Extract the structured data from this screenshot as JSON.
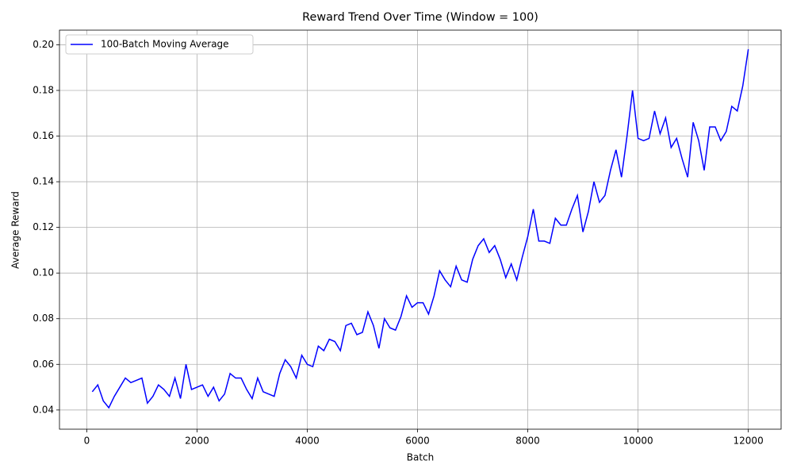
{
  "chart_data": {
    "type": "line",
    "title": "Reward Trend Over Time (Window = 100)",
    "xlabel": "Batch",
    "ylabel": "Average Reward",
    "x": [
      100,
      200,
      300,
      400,
      500,
      600,
      700,
      800,
      900,
      1000,
      1100,
      1200,
      1300,
      1400,
      1500,
      1600,
      1700,
      1800,
      1900,
      2000,
      2100,
      2200,
      2300,
      2400,
      2500,
      2600,
      2700,
      2800,
      2900,
      3000,
      3100,
      3200,
      3300,
      3400,
      3500,
      3600,
      3700,
      3800,
      3900,
      4000,
      4100,
      4200,
      4300,
      4400,
      4500,
      4600,
      4700,
      4800,
      4900,
      5000,
      5100,
      5200,
      5300,
      5400,
      5500,
      5600,
      5700,
      5800,
      5900,
      6000,
      6100,
      6200,
      6300,
      6400,
      6500,
      6600,
      6700,
      6800,
      6900,
      7000,
      7100,
      7200,
      7300,
      7400,
      7500,
      7600,
      7700,
      7800,
      7900,
      8000,
      8100,
      8200,
      8300,
      8400,
      8500,
      8600,
      8700,
      8800,
      8900,
      9000,
      9100,
      9200,
      9300,
      9400,
      9500,
      9600,
      9700,
      9800,
      9900,
      10000,
      10100,
      10200,
      10300,
      10400,
      10500,
      10600,
      10700,
      10800,
      10900,
      11000,
      11100,
      11200,
      11300,
      11400,
      11500,
      11600,
      11700,
      11800,
      11900,
      12000
    ],
    "series": [
      {
        "name": "100-Batch Moving Average",
        "color": "#0000ff",
        "values": [
          0.048,
          0.051,
          0.044,
          0.041,
          0.046,
          0.05,
          0.054,
          0.052,
          0.053,
          0.054,
          0.043,
          0.046,
          0.051,
          0.049,
          0.046,
          0.054,
          0.045,
          0.06,
          0.049,
          0.05,
          0.051,
          0.046,
          0.05,
          0.044,
          0.047,
          0.056,
          0.054,
          0.054,
          0.049,
          0.045,
          0.054,
          0.048,
          0.047,
          0.046,
          0.056,
          0.062,
          0.059,
          0.054,
          0.064,
          0.06,
          0.059,
          0.068,
          0.066,
          0.071,
          0.07,
          0.066,
          0.077,
          0.078,
          0.073,
          0.074,
          0.083,
          0.077,
          0.067,
          0.08,
          0.076,
          0.075,
          0.081,
          0.09,
          0.085,
          0.087,
          0.087,
          0.082,
          0.09,
          0.101,
          0.097,
          0.094,
          0.103,
          0.097,
          0.096,
          0.106,
          0.112,
          0.115,
          0.109,
          0.112,
          0.106,
          0.098,
          0.104,
          0.097,
          0.107,
          0.116,
          0.128,
          0.114,
          0.114,
          0.113,
          0.124,
          0.121,
          0.121,
          0.128,
          0.134,
          0.118,
          0.127,
          0.14,
          0.131,
          0.134,
          0.145,
          0.154,
          0.142,
          0.16,
          0.18,
          0.159,
          0.158,
          0.159,
          0.171,
          0.161,
          0.168,
          0.155,
          0.159,
          0.15,
          0.142,
          0.166,
          0.158,
          0.145,
          0.164,
          0.164,
          0.158,
          0.162,
          0.173,
          0.171,
          0.182,
          0.198
        ]
      }
    ],
    "xlim": [
      -495,
      12595
    ],
    "ylim": [
      0.0316,
      0.2064
    ],
    "xticks": [
      0,
      2000,
      4000,
      6000,
      8000,
      10000,
      12000
    ],
    "yticks": [
      0.04,
      0.06,
      0.08,
      {
        "value": 0.1,
        "label": "0.10"
      },
      0.12,
      0.14,
      0.16,
      0.18,
      {
        "value": 0.2,
        "label": "0.20"
      }
    ],
    "grid": true,
    "legend": "upper-left"
  }
}
